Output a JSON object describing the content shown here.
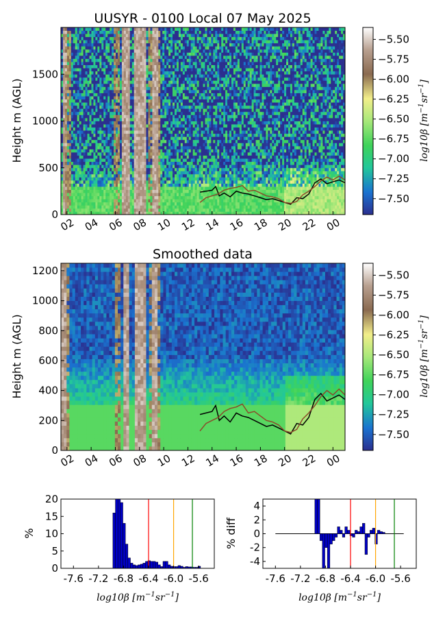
{
  "chart_data": [
    {
      "type": "heatmap",
      "title": "UUSYR - 0100 Local 07 May 2025",
      "ylabel": "Height m (AGL)",
      "xlabel": "",
      "x_ticks": [
        "02",
        "04",
        "06",
        "08",
        "10",
        "12",
        "14",
        "16",
        "18",
        "20",
        "22",
        "00"
      ],
      "y_ticks": [
        0,
        500,
        1000,
        1500
      ],
      "ylim": [
        0,
        2000
      ],
      "x_range_hours": [
        1.5,
        25.0
      ],
      "colorbar": {
        "label": "log10β [m⁻¹sr⁻¹]",
        "label_parts": {
          "main": "log10β [m",
          "exp1": "−1",
          "mid": "sr",
          "exp2": "−1",
          "end": "]"
        },
        "ticks": [
          "-5.50",
          "-5.75",
          "-6.00",
          "-6.25",
          "-6.50",
          "-6.75",
          "-7.00",
          "-7.25",
          "-7.50"
        ],
        "range": [
          -7.7,
          -5.35
        ],
        "colors": [
          "#2b2f8f",
          "#1a73d0",
          "#22c79a",
          "#3fd35a",
          "#a8e87a",
          "#f2ee8a",
          "#8a6a50",
          "#b8a090",
          "#ffffff"
        ]
      },
      "overlay_lines": [
        {
          "color": "#000000",
          "x": [
            13.0,
            13.5,
            14.0,
            14.3,
            14.6,
            15.0,
            15.5,
            16.0,
            16.5,
            17.0,
            17.5,
            18.0,
            18.5,
            19.0,
            19.5,
            20.0,
            20.5,
            21.0,
            21.5,
            22.0,
            22.5,
            23.0,
            23.5,
            24.0,
            24.5,
            25.0
          ],
          "y": [
            240,
            250,
            260,
            300,
            200,
            230,
            190,
            250,
            230,
            220,
            200,
            180,
            160,
            170,
            150,
            130,
            110,
            180,
            170,
            220,
            340,
            380,
            330,
            350,
            370,
            340
          ]
        },
        {
          "color": "#8b4a2a",
          "x": [
            13.0,
            13.5,
            14.0,
            14.5,
            15.0,
            15.5,
            16.0,
            16.5,
            17.0,
            17.5,
            18.0,
            18.5,
            19.0,
            19.5,
            20.0,
            20.5,
            21.0,
            21.5,
            22.0,
            22.5,
            23.0,
            23.5,
            24.0,
            24.5,
            25.0
          ],
          "y": [
            130,
            180,
            200,
            220,
            260,
            280,
            290,
            310,
            250,
            260,
            230,
            200,
            190,
            170,
            130,
            120,
            140,
            210,
            250,
            300,
            360,
            400,
            370,
            410,
            370
          ]
        }
      ]
    },
    {
      "type": "heatmap",
      "title": "Smoothed data",
      "ylabel": "Height m (AGL)",
      "xlabel": "",
      "x_ticks": [
        "02",
        "04",
        "06",
        "08",
        "10",
        "12",
        "14",
        "16",
        "18",
        "20",
        "22",
        "00"
      ],
      "y_ticks": [
        0,
        200,
        400,
        600,
        800,
        1000,
        1200
      ],
      "ylim": [
        0,
        1250
      ],
      "x_range_hours": [
        1.5,
        25.0
      ],
      "colorbar": {
        "label": "log10β [m⁻¹sr⁻¹]",
        "label_parts": {
          "main": "log10β [m",
          "exp1": "−1",
          "mid": "sr",
          "exp2": "−1",
          "end": "]"
        },
        "ticks": [
          "-5.50",
          "-5.75",
          "-6.00",
          "-6.25",
          "-6.50",
          "-6.75",
          "-7.00",
          "-7.25",
          "-7.50"
        ],
        "range": [
          -7.7,
          -5.35
        ],
        "colors": [
          "#2b2f8f",
          "#1a73d0",
          "#22c79a",
          "#3fd35a",
          "#a8e87a",
          "#f2ee8a",
          "#8a6a50",
          "#b8a090",
          "#ffffff"
        ]
      },
      "overlay_lines": [
        {
          "color": "#000000",
          "x": [
            13.0,
            13.5,
            14.0,
            14.3,
            14.6,
            15.0,
            15.5,
            16.0,
            16.5,
            17.0,
            17.5,
            18.0,
            18.5,
            19.0,
            19.5,
            20.0,
            20.5,
            21.0,
            21.5,
            22.0,
            22.5,
            23.0,
            23.5,
            24.0,
            24.5,
            25.0
          ],
          "y": [
            240,
            250,
            260,
            300,
            200,
            230,
            190,
            250,
            230,
            220,
            200,
            180,
            160,
            170,
            150,
            130,
            110,
            180,
            170,
            220,
            340,
            380,
            330,
            350,
            370,
            340
          ]
        },
        {
          "color": "#8b4a2a",
          "x": [
            13.0,
            13.5,
            14.0,
            14.5,
            15.0,
            15.5,
            16.0,
            16.5,
            17.0,
            17.5,
            18.0,
            18.5,
            19.0,
            19.5,
            20.0,
            20.5,
            21.0,
            21.5,
            22.0,
            22.5,
            23.0,
            23.5,
            24.0,
            24.5,
            25.0
          ],
          "y": [
            130,
            180,
            200,
            220,
            260,
            280,
            290,
            310,
            250,
            260,
            230,
            200,
            190,
            170,
            130,
            120,
            140,
            210,
            250,
            300,
            360,
            400,
            370,
            410,
            370
          ]
        }
      ]
    },
    {
      "type": "bar",
      "ylabel": "%",
      "xlabel": "log10β [m⁻¹sr⁻¹]",
      "x_ticks": [
        "-7.6",
        "-7.2",
        "-6.8",
        "-6.4",
        "-6.0",
        "-5.6"
      ],
      "y_ticks": [
        0,
        5,
        10,
        15,
        20
      ],
      "xlim": [
        -7.8,
        -5.35
      ],
      "ylim": [
        0,
        20
      ],
      "x": [
        -6.95,
        -6.91,
        -6.87,
        -6.83,
        -6.79,
        -6.75,
        -6.71,
        -6.67,
        -6.63,
        -6.59,
        -6.55,
        -6.51,
        -6.47,
        -6.43,
        -6.39,
        -6.35,
        -6.31,
        -6.27,
        -6.23,
        -6.19,
        -6.15,
        -6.11,
        -6.07,
        -6.03,
        -5.99,
        -5.95,
        -5.91,
        -5.87,
        -5.83,
        -5.79,
        -5.75,
        -5.71,
        -5.67,
        -5.63,
        -5.59
      ],
      "values": [
        16,
        20,
        20,
        19,
        13,
        7,
        3,
        1.5,
        1,
        0.8,
        1,
        1.2,
        1.5,
        2,
        2.2,
        2,
        2,
        1.8,
        1,
        0.5,
        2,
        2,
        1,
        0.6,
        0.5,
        0.5,
        0.8,
        0.6,
        0.3,
        0.5,
        0.4,
        0.4,
        0.3,
        0.3,
        0.6
      ],
      "vlines": [
        {
          "x": -6.4,
          "color": "#ff0000"
        },
        {
          "x": -6.0,
          "color": "#ffa500"
        },
        {
          "x": -5.7,
          "color": "#008000"
        }
      ]
    },
    {
      "type": "bar",
      "ylabel": "% diff",
      "xlabel": "log10β [m⁻¹sr⁻¹]",
      "x_ticks": [
        "-7.6",
        "-7.2",
        "-6.8",
        "-6.4",
        "-6.0",
        "-5.6"
      ],
      "y_ticks": [
        -4,
        -2,
        0,
        2,
        4
      ],
      "xlim": [
        -7.8,
        -5.35
      ],
      "ylim": [
        -5,
        5
      ],
      "x": [
        -6.95,
        -6.91,
        -6.87,
        -6.83,
        -6.79,
        -6.75,
        -6.71,
        -6.67,
        -6.63,
        -6.59,
        -6.55,
        -6.51,
        -6.47,
        -6.43,
        -6.39,
        -6.35,
        -6.31,
        -6.27,
        -6.23,
        -6.19,
        -6.15,
        -6.11,
        -6.07,
        -6.03,
        -5.99,
        -5.95,
        -5.91,
        -5.87,
        -5.83,
        -5.79,
        -5.75,
        -5.71,
        -5.67,
        -5.63,
        -5.59
      ],
      "values": [
        5,
        5,
        -1,
        -5,
        -2,
        -5,
        -1.5,
        -1,
        -0.5,
        1,
        0.5,
        -0.5,
        1,
        0.5,
        -0.3,
        -0.5,
        0.5,
        0.3,
        1,
        1.5,
        -3,
        -0.5,
        0.5,
        0.8,
        -1.5,
        0.5,
        0.3,
        0.2,
        0,
        0,
        0,
        0,
        0,
        0,
        0
      ],
      "baseline": {
        "from": -7.6,
        "to": -5.55,
        "value": 0
      },
      "vlines": [
        {
          "x": -6.4,
          "color": "#ff0000"
        },
        {
          "x": -6.0,
          "color": "#ffa500"
        },
        {
          "x": -5.7,
          "color": "#008000"
        }
      ]
    }
  ]
}
